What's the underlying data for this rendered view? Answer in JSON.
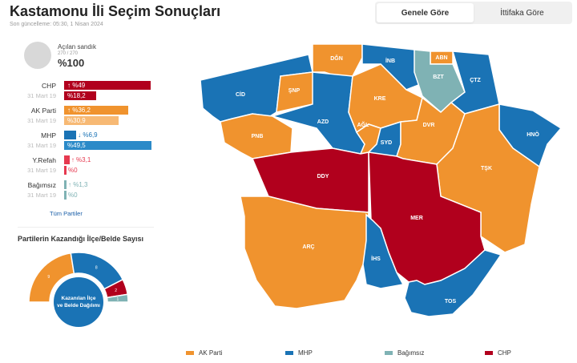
{
  "header": {
    "title": "Kastamonu İli Seçim Sonuçları",
    "updated": "Son güncelleme: 05:30, 1 Nisan 2024"
  },
  "toggle": {
    "general": "Genele Göre",
    "alliance": "İttifaka Göre"
  },
  "ballot": {
    "label": "Açılan sandık",
    "count": "270 / 270",
    "percent": "%100",
    "fraction": 1.0
  },
  "parties": [
    {
      "name": "CHP",
      "current": "%49",
      "current_value": 49,
      "arrow": "↑",
      "prev_label": "31 Mart 19",
      "previous": "%18,2",
      "previous_value": 18.2,
      "color": "#b1001d",
      "prev_color": "#b1001d"
    },
    {
      "name": "AK Parti",
      "current": "%36,2",
      "current_value": 36.2,
      "arrow": "↑",
      "prev_label": "31 Mart 19",
      "previous": "%30,9",
      "previous_value": 30.9,
      "color": "#f0932e",
      "prev_color": "#f7b974"
    },
    {
      "name": "MHP",
      "current": "%6,9",
      "current_value": 6.9,
      "arrow": "↓",
      "prev_label": "31 Mart 19",
      "previous": "%49,5",
      "previous_value": 49.5,
      "color": "#1a73b5",
      "prev_color": "#2b8ac8"
    },
    {
      "name": "Y.Refah",
      "current": "%3,1",
      "current_value": 3.1,
      "arrow": "↑",
      "prev_label": "31 Mart 19",
      "previous": "%0",
      "previous_value": 0,
      "color": "#e63950",
      "prev_color": "#e63950"
    },
    {
      "name": "Bağımsız",
      "current": "%1,3",
      "current_value": 1.3,
      "arrow": "↑",
      "prev_label": "31 Mart 19",
      "previous": "%0",
      "previous_value": 0,
      "color": "#7fb2b4",
      "prev_color": "#7fb2b4"
    }
  ],
  "all_parties_link": "Tüm Partiler",
  "wins": {
    "title": "Partilerin Kazandığı İlçe/Belde Sayısı",
    "center_label": "Kazanılan İlçe ve Belde Dağılımı",
    "segments": [
      {
        "party": "AK Parti",
        "value": "9",
        "color": "#f0932e"
      },
      {
        "party": "MHP",
        "value": "8",
        "color": "#1a73b5"
      },
      {
        "party": "CHP",
        "value": "2",
        "color": "#b1001d"
      },
      {
        "party": "Bağımsız",
        "value": "1",
        "color": "#7fb2b4"
      }
    ]
  },
  "districts": [
    {
      "code": "CİD",
      "winner": "MHP"
    },
    {
      "code": "DĞN",
      "winner": "AK Parti"
    },
    {
      "code": "İNB",
      "winner": "MHP"
    },
    {
      "code": "ABN",
      "winner": "AK Parti"
    },
    {
      "code": "BZT",
      "winner": "Bağımsız"
    },
    {
      "code": "ÇTZ",
      "winner": "MHP"
    },
    {
      "code": "ŞNP",
      "winner": "AK Parti"
    },
    {
      "code": "AZD",
      "winner": "MHP"
    },
    {
      "code": "KRE",
      "winner": "AK Parti"
    },
    {
      "code": "PNB",
      "winner": "AK Parti"
    },
    {
      "code": "AĞL",
      "winner": "AK Parti"
    },
    {
      "code": "SYD",
      "winner": "MHP"
    },
    {
      "code": "DVR",
      "winner": "AK Parti"
    },
    {
      "code": "HNÖ",
      "winner": "MHP"
    },
    {
      "code": "DDY",
      "winner": "CHP"
    },
    {
      "code": "TŞK",
      "winner": "AK Parti"
    },
    {
      "code": "MER",
      "winner": "CHP"
    },
    {
      "code": "ARÇ",
      "winner": "AK Parti"
    },
    {
      "code": "İHS",
      "winner": "MHP"
    },
    {
      "code": "TOS",
      "winner": "MHP"
    }
  ],
  "legend": [
    {
      "label": "AK Parti",
      "color": "#f0932e"
    },
    {
      "label": "MHP",
      "color": "#1a73b5"
    },
    {
      "label": "Bağımsız",
      "color": "#7fb2b4"
    },
    {
      "label": "CHP",
      "color": "#b1001d"
    }
  ]
}
